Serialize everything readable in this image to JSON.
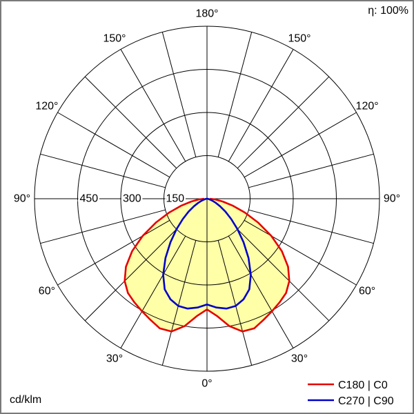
{
  "header": {
    "efficiency": "η: 100%"
  },
  "footer": {
    "unit": "cd/klm"
  },
  "legend": [
    {
      "label": "C180 | C0",
      "color": "#e60000"
    },
    {
      "label": "C270 | C90",
      "color": "#0000c8"
    }
  ],
  "chart_data": {
    "type": "polar_intensity_distribution",
    "title": "",
    "unit": "cd/klm",
    "r_max": 600,
    "rings": [
      150,
      300,
      450,
      600
    ],
    "ring_labels": [
      {
        "value": 450,
        "label": "450"
      },
      {
        "value": 300,
        "label": "300"
      },
      {
        "value": 150,
        "label": "150"
      }
    ],
    "spoke_step_deg": 15,
    "angle_ticks": [
      {
        "angle": 0,
        "label": "0°"
      },
      {
        "angle": 30,
        "label": "30°"
      },
      {
        "angle": 60,
        "label": "60°"
      },
      {
        "angle": 90,
        "label": "90°"
      },
      {
        "angle": 120,
        "label": "120°"
      },
      {
        "angle": 150,
        "label": "150°"
      },
      {
        "angle": 180,
        "label": "180°"
      }
    ],
    "gamma_deg": [
      0,
      5,
      10,
      15,
      20,
      25,
      30,
      35,
      40,
      45,
      50,
      55,
      60,
      65,
      70,
      75,
      80,
      85,
      90
    ],
    "series": [
      {
        "name": "C180 | C0",
        "color": "#e60000",
        "fill": "#ffffa8",
        "values": [
          385,
          410,
          450,
          478,
          480,
          465,
          452,
          440,
          428,
          405,
          368,
          318,
          258,
          196,
          140,
          92,
          55,
          28,
          10
        ]
      },
      {
        "name": "C270 | C90",
        "color": "#0000c8",
        "fill": null,
        "values": [
          368,
          380,
          388,
          386,
          372,
          348,
          305,
          252,
          198,
          150,
          110,
          78,
          52,
          33,
          19,
          10,
          5,
          2,
          0
        ]
      }
    ],
    "grid": {
      "color": "#000000",
      "line_width": 1,
      "frame_color": "#7a7a7a"
    }
  }
}
